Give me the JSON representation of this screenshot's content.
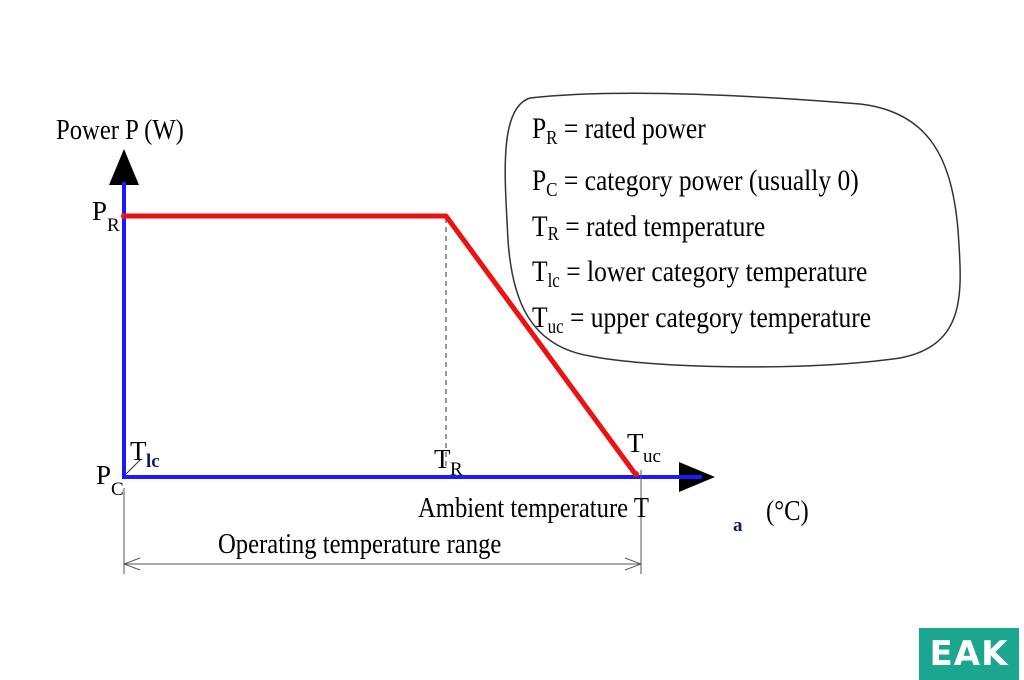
{
  "axes": {
    "y_label": "Power P (W)",
    "x_label": "Ambient temperature T",
    "x_label_sub": "a",
    "x_label_unit": "(°C)"
  },
  "markers": {
    "pr": {
      "main": "P",
      "sub": "R"
    },
    "pc": {
      "main": "P",
      "sub": "C"
    },
    "tlc": {
      "main": "T",
      "sub": "lc"
    },
    "tr": {
      "main": "T",
      "sub": "R"
    },
    "tuc": {
      "main": "T",
      "sub": "uc"
    }
  },
  "range_label": "Operating temperature range",
  "legend": [
    {
      "sym": "P",
      "sub": "R",
      "text": "= rated power"
    },
    {
      "sym": "P",
      "sub": "C",
      "text": "= category power (usually 0)"
    },
    {
      "sym": "T",
      "sub": "R",
      "text": " = rated temperature"
    },
    {
      "sym": "T",
      "sub": "lc",
      "text": " = lower category temperature"
    },
    {
      "sym": "T",
      "sub": "uc",
      "text": "= upper category temperature"
    }
  ],
  "logo": "EAK",
  "colors": {
    "axis": "#1a1aff",
    "curve": "#ee1111",
    "logo_bg": "#1ba68f"
  }
}
